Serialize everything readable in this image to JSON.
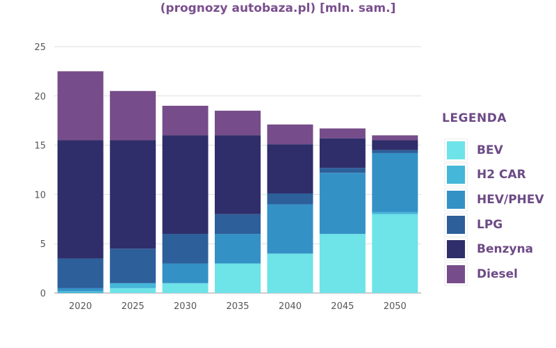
{
  "title": "(prognozy autobaza.pl) [mln. sam.]",
  "legend": {
    "title": "LEGENDA",
    "items": [
      {
        "label": "BEV",
        "color": "#6ee3e8"
      },
      {
        "label": "H2 CAR",
        "color": "#45b7d8"
      },
      {
        "label": "HEV/PHEV",
        "color": "#3491c6"
      },
      {
        "label": "LPG",
        "color": "#2d5f9a"
      },
      {
        "label": "Benzyna",
        "color": "#2f2e6b"
      },
      {
        "label": "Diesel",
        "color": "#764d8a"
      }
    ]
  },
  "chart_data": {
    "type": "bar",
    "stacked": true,
    "categories": [
      "2020",
      "2025",
      "2030",
      "2035",
      "2040",
      "2045",
      "2050"
    ],
    "ylim": [
      0,
      25
    ],
    "yticks": [
      0,
      5,
      10,
      15,
      20,
      25
    ],
    "grid": true,
    "legend_position": "right",
    "series": [
      {
        "name": "BEV",
        "color": "#6ee3e8",
        "values": [
          0,
          0.5,
          1,
          3,
          4,
          6,
          8
        ]
      },
      {
        "name": "H2 CAR",
        "color": "#45b7d8",
        "values": [
          0.2,
          0.5,
          0,
          0,
          0,
          0,
          0.2
        ]
      },
      {
        "name": "HEV/PHEV",
        "color": "#3491c6",
        "values": [
          0.3,
          0,
          2,
          3,
          5,
          6.2,
          6
        ]
      },
      {
        "name": "LPG",
        "color": "#2d5f9a",
        "values": [
          3,
          3.5,
          3,
          2,
          1.1,
          0.5,
          0.3
        ]
      },
      {
        "name": "Benzyna",
        "color": "#2f2e6b",
        "values": [
          12,
          11,
          10,
          8,
          5,
          3,
          1
        ]
      },
      {
        "name": "Diesel",
        "color": "#764d8a",
        "values": [
          7,
          5,
          3,
          2.5,
          2,
          1,
          0.5
        ]
      }
    ]
  }
}
